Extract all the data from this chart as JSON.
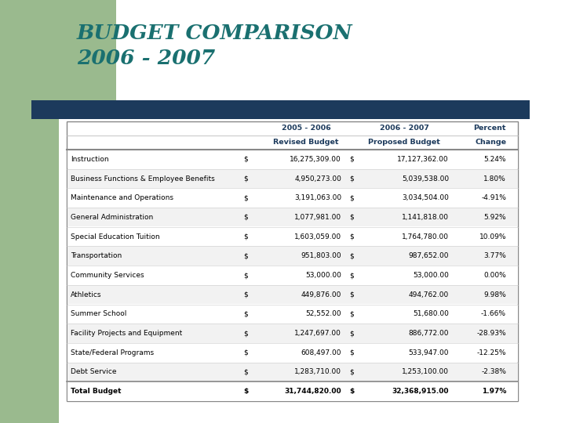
{
  "title_line1": "BUDGET COMPARISON",
  "title_line2": "2006 - 2007",
  "title_color": "#1a7070",
  "bg_color": "#ffffff",
  "green_rect_color": "#9aba8e",
  "navy_bar_color": "#1c3a5c",
  "header_row1": [
    "",
    "2005 - 2006",
    "2006 - 2007",
    "Percent"
  ],
  "header_row2": [
    "",
    "Revised Budget",
    "Proposed Budget",
    "Change"
  ],
  "rows": [
    [
      "Instruction",
      "$",
      "16,275,309.00",
      "$",
      "17,127,362.00",
      "5.24%"
    ],
    [
      "Business Functions & Employee Benefits",
      "$",
      "4,950,273.00",
      "$",
      "5,039,538.00",
      "1.80%"
    ],
    [
      "Maintenance and Operations",
      "$",
      "3,191,063.00",
      "$",
      "3,034,504.00",
      "-4.91%"
    ],
    [
      "General Administration",
      "$",
      "1,077,981.00",
      "$",
      "1,141,818.00",
      "5.92%"
    ],
    [
      "Special Education Tuition",
      "$",
      "1,603,059.00",
      "$",
      "1,764,780.00",
      "10.09%"
    ],
    [
      "Transportation",
      "$",
      "951,803.00",
      "$",
      "987,652.00",
      "3.77%"
    ],
    [
      "Community Services",
      "$",
      "53,000.00",
      "$",
      "53,000.00",
      "0.00%"
    ],
    [
      "Athletics",
      "$",
      "449,876.00",
      "$",
      "494,762.00",
      "9.98%"
    ],
    [
      "Summer School",
      "$",
      "52,552.00",
      "$",
      "51,680.00",
      "-1.66%"
    ],
    [
      "Facility Projects and Equipment",
      "$",
      "1,247,697.00",
      "$",
      "886,772.00",
      "-28.93%"
    ],
    [
      "State/Federal Programs",
      "$",
      "608,497.00",
      "$",
      "533,947.00",
      "-12.25%"
    ],
    [
      "Debt Service",
      "$",
      "1,283,710.00",
      "$",
      "1,253,100.00",
      "-2.38%"
    ],
    [
      "Total Budget",
      "$",
      "31,744,820.00",
      "$",
      "32,368,915.00",
      "1.97%"
    ]
  ],
  "table_border_color": "#888888",
  "row_text_color": "#000000",
  "header_text_color": "#1c3a5c"
}
